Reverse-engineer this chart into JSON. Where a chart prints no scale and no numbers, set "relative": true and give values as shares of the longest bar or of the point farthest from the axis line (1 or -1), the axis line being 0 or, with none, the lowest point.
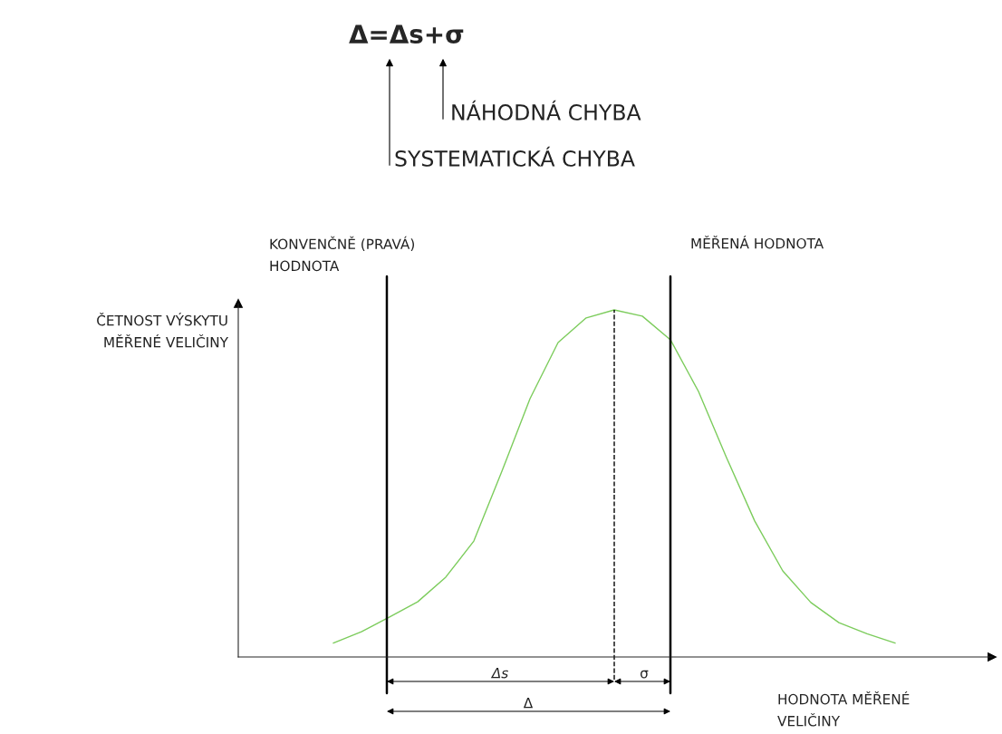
{
  "chart_data": {
    "type": "line",
    "relative": true,
    "title": "Δ=Δs+σ",
    "xlabel": "HODNOTA MĚŘENÉ\nVELIČINY",
    "annotations": [
      "NÁHODNÁ CHYBA",
      "SYSTEMATICKÁ CHYBA",
      "KONVENČNĚ (PRAVÁ)\nHODNOTA",
      "MĚŘENÁ HODNOTA",
      "ČETNOST VÝSKYTU\nMĚŘENÉ VELIČINY",
      "Δs",
      "σ",
      "Δ"
    ],
    "categories": [
      null,
      null,
      null,
      null,
      null,
      null,
      null,
      null,
      null,
      null,
      null,
      null,
      null,
      null,
      null,
      null,
      null,
      null,
      null,
      null,
      null
    ],
    "series": [
      {
        "color": "#7ccc5c",
        "values": [
          0.04,
          0.073,
          0.115,
          0.159,
          0.23,
          0.334,
          0.535,
          0.744,
          0.906,
          0.977,
          1.0,
          0.982,
          0.914,
          0.765,
          0.574,
          0.392,
          0.248,
          0.157,
          0.099,
          0.067,
          0.04
        ]
      }
    ],
    "marker": "none",
    "line_style": "solid"
  }
}
